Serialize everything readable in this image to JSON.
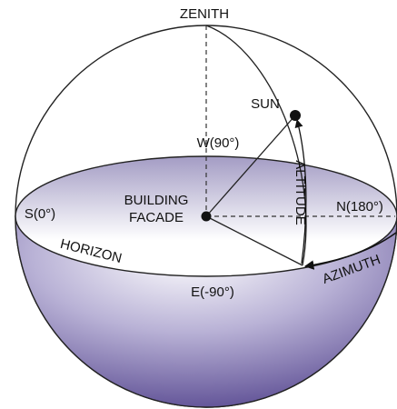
{
  "labels": {
    "zenith": "ZENITH",
    "sun": "SUN",
    "west": "W(90°)",
    "altitude": "ALTITUDE",
    "building": [
      "BUILDING",
      "FACADE"
    ],
    "south": "S(0°)",
    "north": "N(180°)",
    "horizon": "HORIZON",
    "east": "E(-90°)",
    "azimuth": "AZIMUTH"
  }
}
